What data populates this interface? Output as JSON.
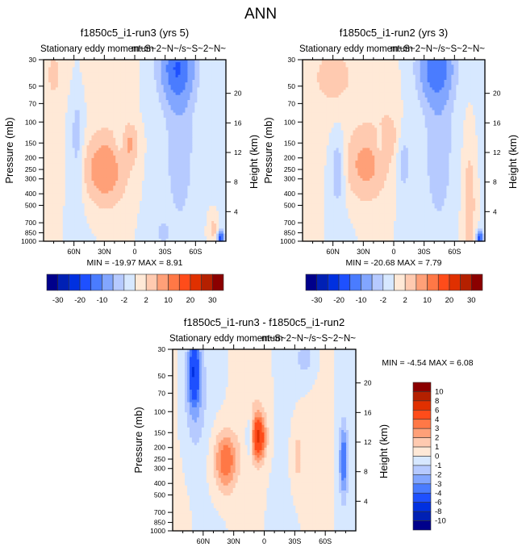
{
  "page_title": "ANN",
  "chart_data": [
    {
      "type": "heatmap",
      "id": "p1",
      "title": "f1850c5_i1-run3 (yrs 5)",
      "left_string": "Stationary eddy momentum",
      "right_string": "m~S~2~N~/s~S~2~N~",
      "xlabel": "",
      "ylabel": "Pressure (mb)",
      "ylabel_right": "Height (km)",
      "x_ticks": [
        "60N",
        "30N",
        "0",
        "30S",
        "60S"
      ],
      "x_tick_values": [
        60,
        30,
        0,
        -30,
        -60
      ],
      "xlim": [
        90,
        -90
      ],
      "y_ticks": [
        "30",
        "50",
        "70",
        "100",
        "150",
        "200",
        "250",
        "300",
        "400",
        "500",
        "700",
        "850",
        "1000"
      ],
      "y_tick_values": [
        30,
        50,
        70,
        100,
        150,
        200,
        250,
        300,
        400,
        500,
        700,
        850,
        1000
      ],
      "ylim": [
        1000,
        30
      ],
      "yscale": "log",
      "height_ticks": [
        "4",
        "8",
        "12",
        "16",
        "20"
      ],
      "height_tick_values": [
        4,
        8,
        12,
        16,
        20
      ],
      "stats": "MIN = -19.97  MAX =   8.91",
      "min": -19.97,
      "max": 8.91,
      "levels": [
        -30,
        -25,
        -20,
        -15,
        -10,
        -5,
        -2,
        0,
        2,
        5,
        10,
        15,
        20,
        25,
        30
      ],
      "colorbar_labels": [
        "-30",
        "-20",
        "-10",
        "-2",
        "2",
        "10",
        "20",
        "30"
      ],
      "colorbar_orientation": "horizontal",
      "features": [
        {
          "lat": 30,
          "p": 250,
          "value": 8,
          "wlat": 14,
          "wp": 0.45
        },
        {
          "lat": 5,
          "p": 150,
          "value": 5,
          "wlat": 6,
          "wp": 0.25
        },
        {
          "lat": -42,
          "p": 35,
          "value": -14,
          "wlat": 11,
          "wp": 0.45
        },
        {
          "lat": -45,
          "p": 150,
          "value": -4,
          "wlat": 10,
          "wp": 1.2
        },
        {
          "lat": 57,
          "p": 150,
          "value": -3,
          "wlat": 5,
          "wp": 0.9
        },
        {
          "lat": 14,
          "p": 150,
          "value": -3,
          "wlat": 4,
          "wp": 0.25
        },
        {
          "lat": -28,
          "p": 850,
          "value": -4,
          "wlat": 4,
          "wp": 0.12
        },
        {
          "lat": -85,
          "p": 950,
          "value": -18,
          "wlat": 2,
          "wp": 0.1
        },
        {
          "lat": -78,
          "p": 800,
          "value": 3,
          "wlat": 3,
          "wp": 0.2
        },
        {
          "lat": 80,
          "p": 40,
          "value": 3,
          "wlat": 4,
          "wp": 0.25
        },
        {
          "lat": 45,
          "p": 40,
          "value": 1,
          "wlat": 25,
          "wp": 0.6
        }
      ]
    },
    {
      "type": "heatmap",
      "id": "p2",
      "title": "f1850c5_i1-run2 (yrs 3)",
      "left_string": "Stationary eddy momentum",
      "right_string": "m~S~2~N~/s~S~2~N~",
      "xlabel": "",
      "ylabel": "Pressure (mb)",
      "ylabel_right": "Height (km)",
      "x_ticks": [
        "60N",
        "30N",
        "0",
        "30S",
        "60S"
      ],
      "x_tick_values": [
        60,
        30,
        0,
        -30,
        -60
      ],
      "xlim": [
        90,
        -90
      ],
      "y_ticks": [
        "30",
        "50",
        "70",
        "100",
        "150",
        "200",
        "250",
        "300",
        "400",
        "500",
        "700",
        "850",
        "1000"
      ],
      "y_tick_values": [
        30,
        50,
        70,
        100,
        150,
        200,
        250,
        300,
        400,
        500,
        700,
        850,
        1000
      ],
      "ylim": [
        1000,
        30
      ],
      "yscale": "log",
      "height_ticks": [
        "4",
        "8",
        "12",
        "16",
        "20"
      ],
      "height_tick_values": [
        4,
        8,
        12,
        16,
        20
      ],
      "stats": "MIN = -20.68  MAX =   7.79",
      "min": -20.68,
      "max": 7.79,
      "levels": [
        -30,
        -25,
        -20,
        -15,
        -10,
        -5,
        -2,
        0,
        2,
        5,
        10,
        15,
        20,
        25,
        30
      ],
      "colorbar_labels": [
        "-30",
        "-20",
        "-10",
        "-2",
        "2",
        "10",
        "20",
        "30"
      ],
      "colorbar_orientation": "horizontal",
      "features": [
        {
          "lat": 28,
          "p": 230,
          "value": 6,
          "wlat": 14,
          "wp": 0.45
        },
        {
          "lat": 5,
          "p": 130,
          "value": 3,
          "wlat": 7,
          "wp": 0.3
        },
        {
          "lat": -42,
          "p": 35,
          "value": -13,
          "wlat": 11,
          "wp": 0.45
        },
        {
          "lat": -45,
          "p": 150,
          "value": -4,
          "wlat": 10,
          "wp": 1.2
        },
        {
          "lat": 55,
          "p": 250,
          "value": -4,
          "wlat": 5,
          "wp": 0.5
        },
        {
          "lat": 14,
          "p": 150,
          "value": -3,
          "wlat": 3,
          "wp": 0.2
        },
        {
          "lat": -10,
          "p": 220,
          "value": -3,
          "wlat": 5,
          "wp": 0.4
        },
        {
          "lat": -85,
          "p": 950,
          "value": -18,
          "wlat": 2,
          "wp": 0.1
        },
        {
          "lat": -75,
          "p": 500,
          "value": 4,
          "wlat": 4,
          "wp": 0.8
        },
        {
          "lat": 60,
          "p": 40,
          "value": 3,
          "wlat": 12,
          "wp": 0.35
        },
        {
          "lat": 45,
          "p": 60,
          "value": 1,
          "wlat": 30,
          "wp": 0.7
        }
      ]
    },
    {
      "type": "heatmap",
      "id": "p3",
      "title": "f1850c5_i1-run3 - f1850c5_i1-run2",
      "left_string": "Stationary eddy momentum",
      "right_string": "m~S~2~N~/s~S~2~N~",
      "xlabel": "",
      "ylabel": "Pressure (mb)",
      "ylabel_right": "Height (km)",
      "x_ticks": [
        "60N",
        "30N",
        "0",
        "30S",
        "60S"
      ],
      "x_tick_values": [
        60,
        30,
        0,
        -30,
        -60
      ],
      "xlim": [
        90,
        -90
      ],
      "y_ticks": [
        "30",
        "50",
        "70",
        "100",
        "150",
        "200",
        "250",
        "300",
        "400",
        "500",
        "700",
        "850",
        "1000"
      ],
      "y_tick_values": [
        30,
        50,
        70,
        100,
        150,
        200,
        250,
        300,
        400,
        500,
        700,
        850,
        1000
      ],
      "ylim": [
        1000,
        30
      ],
      "yscale": "log",
      "height_ticks": [
        "4",
        "8",
        "12",
        "16",
        "20"
      ],
      "height_tick_values": [
        4,
        8,
        12,
        16,
        20
      ],
      "stats": "MIN =  -4.54  MAX =   6.08",
      "min": -4.54,
      "max": 6.08,
      "levels": [
        -10,
        -8,
        -6,
        -4,
        -3,
        -2,
        -1,
        0,
        1,
        2,
        3,
        4,
        6,
        8,
        10
      ],
      "colorbar_labels": [
        "10",
        "8",
        "6",
        "4",
        "3",
        "2",
        "1",
        "0",
        "-1",
        "-2",
        "-3",
        "-4",
        "-6",
        "-8",
        "-10"
      ],
      "colorbar_orientation": "vertical",
      "features": [
        {
          "lat": 69,
          "p": 45,
          "value": -4.5,
          "wlat": 4,
          "wp": 0.45
        },
        {
          "lat": 68,
          "p": 70,
          "value": -2,
          "wlat": 8,
          "wp": 0.8
        },
        {
          "lat": 38,
          "p": 260,
          "value": 4,
          "wlat": 8,
          "wp": 0.4
        },
        {
          "lat": 6,
          "p": 165,
          "value": 6,
          "wlat": 5,
          "wp": 0.3
        },
        {
          "lat": 14,
          "p": 160,
          "value": -2.5,
          "wlat": 3,
          "wp": 0.3
        },
        {
          "lat": -33,
          "p": 240,
          "value": 1.5,
          "wlat": 4,
          "wp": 0.4
        },
        {
          "lat": -78,
          "p": 260,
          "value": -4,
          "wlat": 3,
          "wp": 0.5
        },
        {
          "lat": -40,
          "p": 35,
          "value": -1.5,
          "wlat": 7,
          "wp": 0.3
        },
        {
          "lat": 10,
          "p": 90,
          "value": 0.7,
          "wlat": 10,
          "wp": 0.8
        }
      ]
    }
  ],
  "colors": {
    "main_palette": [
      "#00008b",
      "#0020b4",
      "#0030e0",
      "#1e50ff",
      "#4a7cff",
      "#82a6ff",
      "#b6caff",
      "#d7e8ff",
      "#ffe9d7",
      "#ffcab0",
      "#ffa078",
      "#ff7846",
      "#ff4c1a",
      "#e03000",
      "#b42000",
      "#8b0000"
    ],
    "frame": "#000000"
  }
}
